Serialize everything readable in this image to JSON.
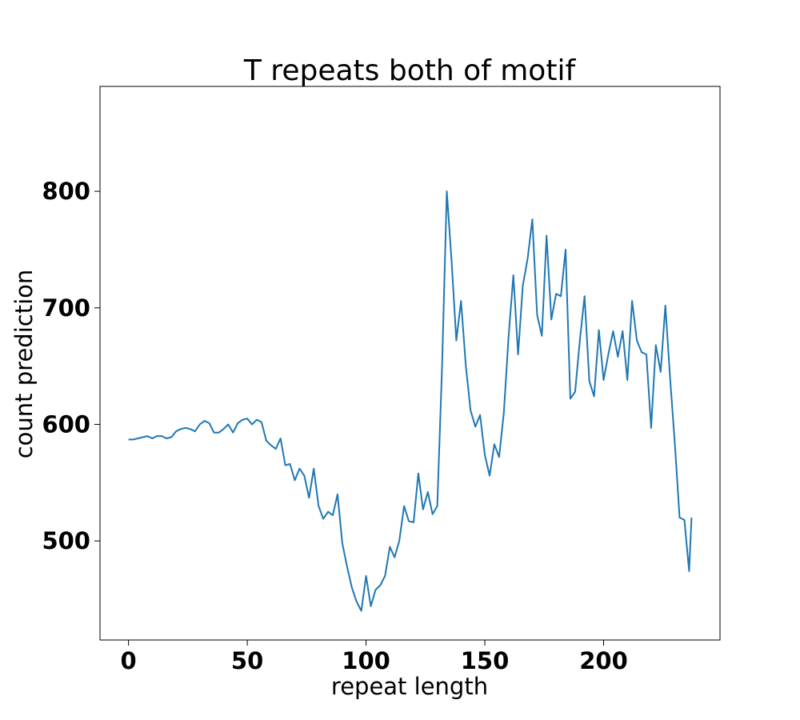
{
  "chart_data": {
    "type": "line",
    "title": "T repeats both of motif",
    "xlabel": "repeat length",
    "ylabel": "count prediction",
    "xlim": [
      -12,
      249
    ],
    "ylim": [
      415,
      890
    ],
    "xticks": [
      0,
      50,
      100,
      150,
      200
    ],
    "xtick_labels": [
      "0",
      "50",
      "100",
      "150",
      "200"
    ],
    "yticks": [
      500,
      600,
      700,
      800
    ],
    "ytick_labels": [
      "500",
      "600",
      "700",
      "800"
    ],
    "grid": false,
    "color": "#1f77b4",
    "series": [
      {
        "x": [
          0,
          2,
          4,
          6,
          8,
          10,
          12,
          14,
          16,
          18,
          20,
          22,
          24,
          26,
          28,
          30,
          32,
          34,
          36,
          38,
          40,
          42,
          44,
          46,
          48,
          50,
          52,
          54,
          56,
          58,
          60,
          62,
          64,
          66,
          68,
          70,
          72,
          74,
          76,
          78,
          80,
          82,
          84,
          86,
          88,
          90,
          92,
          94,
          96,
          98,
          100,
          102,
          104,
          106,
          108,
          110,
          112,
          114,
          116,
          118,
          120,
          122,
          124,
          126,
          128,
          130,
          132,
          134,
          136,
          138,
          140,
          142,
          144,
          146,
          148,
          150,
          152,
          154,
          156,
          158,
          160,
          162,
          164,
          166,
          168,
          170,
          172,
          174,
          176,
          178,
          180,
          182,
          184,
          186,
          188,
          190,
          192,
          194,
          196,
          198,
          200,
          202,
          204,
          206,
          208,
          210,
          212,
          214,
          216,
          218,
          220,
          222,
          224,
          226,
          228,
          230,
          232,
          234,
          236,
          237
        ],
        "y": [
          587,
          587,
          588,
          589,
          590,
          588,
          590,
          590,
          588,
          589,
          594,
          596,
          597,
          596,
          594,
          600,
          603,
          601,
          593,
          593,
          596,
          600,
          593,
          601,
          604,
          605,
          600,
          604,
          602,
          586,
          582,
          579,
          588,
          565,
          566,
          552,
          562,
          556,
          537,
          562,
          530,
          519,
          525,
          522,
          540,
          498,
          478,
          460,
          448,
          440,
          470,
          444,
          458,
          462,
          470,
          495,
          486,
          500,
          530,
          517,
          516,
          558,
          527,
          542,
          523,
          530,
          650,
          800,
          740,
          672,
          706,
          650,
          612,
          598,
          608,
          574,
          556,
          583,
          572,
          610,
          675,
          728,
          660,
          719,
          742,
          776,
          694,
          676,
          762,
          690,
          712,
          710,
          750,
          622,
          628,
          672,
          710,
          637,
          624,
          681,
          638,
          660,
          680,
          658,
          680,
          638,
          706,
          672,
          662,
          660,
          597,
          668,
          645,
          702,
          640,
          583,
          520,
          518,
          474,
          520
        ],
        "__note": ""
      }
    ]
  }
}
